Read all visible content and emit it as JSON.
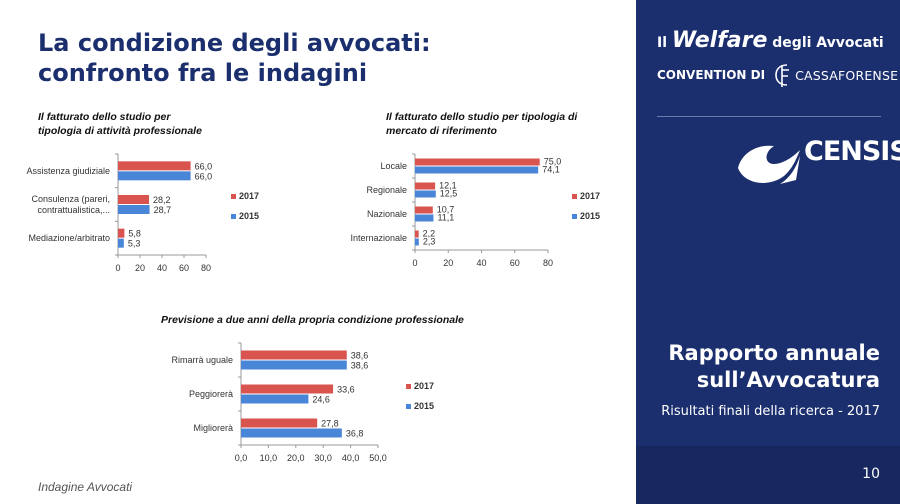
{
  "slide": {
    "title_line1": "La condizione degli avvocati:",
    "title_line2": "confronto fra le indagini",
    "footer": "Indagine Avvocati",
    "page_number": "10"
  },
  "sidebar": {
    "welfare_prefix": "Il",
    "welfare_word": "Welfare",
    "welfare_suffix": "degli Avvocati",
    "convention": "CONVENTION DI",
    "cassa": "CASSAFORENSE",
    "censis": "CENSIS",
    "report_line1": "Rapporto annuale",
    "report_line2": "sull’Avvocatura",
    "subtitle": "Risultati finali della ricerca - 2017"
  },
  "colors": {
    "navy": "#1b2f6e",
    "series_2017": "#d9534f",
    "series_2015": "#4a86d8"
  },
  "chart_data": [
    {
      "type": "bar",
      "orientation": "horizontal",
      "title_line1": "Il fatturato dello studio per",
      "title_line2": "tipologia di attività professionale",
      "categories": [
        [
          "Assistenza giudiziale"
        ],
        [
          "Consulenza (pareri,",
          "contrattualistica,..."
        ],
        [
          "Mediazione/arbitrato"
        ]
      ],
      "series": [
        {
          "name": "2017",
          "values": [
            66.0,
            28.2,
            5.8
          ],
          "labels": [
            "66,0",
            "28,2",
            "5,8"
          ]
        },
        {
          "name": "2015",
          "values": [
            66.0,
            28.7,
            5.3
          ],
          "labels": [
            "66,0",
            "28,7",
            "5,3"
          ]
        }
      ],
      "xlim": [
        0,
        80
      ],
      "ticks": [
        0,
        20,
        40,
        60,
        80
      ],
      "tick_labels": [
        "0",
        "20",
        "40",
        "60",
        "80"
      ],
      "legend": [
        "2017",
        "2015"
      ]
    },
    {
      "type": "bar",
      "orientation": "horizontal",
      "title_line1": "Il fatturato dello studio per tipologia di",
      "title_line2": "mercato di riferimento",
      "categories": [
        [
          "Locale"
        ],
        [
          "Regionale"
        ],
        [
          "Nazionale"
        ],
        [
          "Internazionale"
        ]
      ],
      "series": [
        {
          "name": "2017",
          "values": [
            75.0,
            12.1,
            10.7,
            2.2
          ],
          "labels": [
            "75,0",
            "12,1",
            "10,7",
            "2,2"
          ]
        },
        {
          "name": "2015",
          "values": [
            74.1,
            12.5,
            11.1,
            2.3
          ],
          "labels": [
            "74,1",
            "12,5",
            "11,1",
            "2,3"
          ]
        }
      ],
      "xlim": [
        0,
        80
      ],
      "ticks": [
        0,
        20,
        40,
        60,
        80
      ],
      "tick_labels": [
        "0",
        "20",
        "40",
        "60",
        "80"
      ],
      "legend": [
        "2017",
        "2015"
      ]
    },
    {
      "type": "bar",
      "orientation": "horizontal",
      "title_line1": "Previsione a due anni della propria condizione professionale",
      "title_line2": "",
      "categories": [
        [
          "Rimarrà uguale"
        ],
        [
          "Peggiorerà"
        ],
        [
          "Migliorerà"
        ]
      ],
      "series": [
        {
          "name": "2017",
          "values": [
            38.6,
            33.6,
            27.8
          ],
          "labels": [
            "38,6",
            "33,6",
            "27,8"
          ]
        },
        {
          "name": "2015",
          "values": [
            38.6,
            24.6,
            36.8
          ],
          "labels": [
            "38,6",
            "24,6",
            "36,8"
          ]
        }
      ],
      "xlim": [
        0,
        50
      ],
      "ticks": [
        0,
        10,
        20,
        30,
        40,
        50
      ],
      "tick_labels": [
        "0,0",
        "10,0",
        "20,0",
        "30,0",
        "40,0",
        "50,0"
      ],
      "legend": [
        "2017",
        "2015"
      ]
    }
  ]
}
